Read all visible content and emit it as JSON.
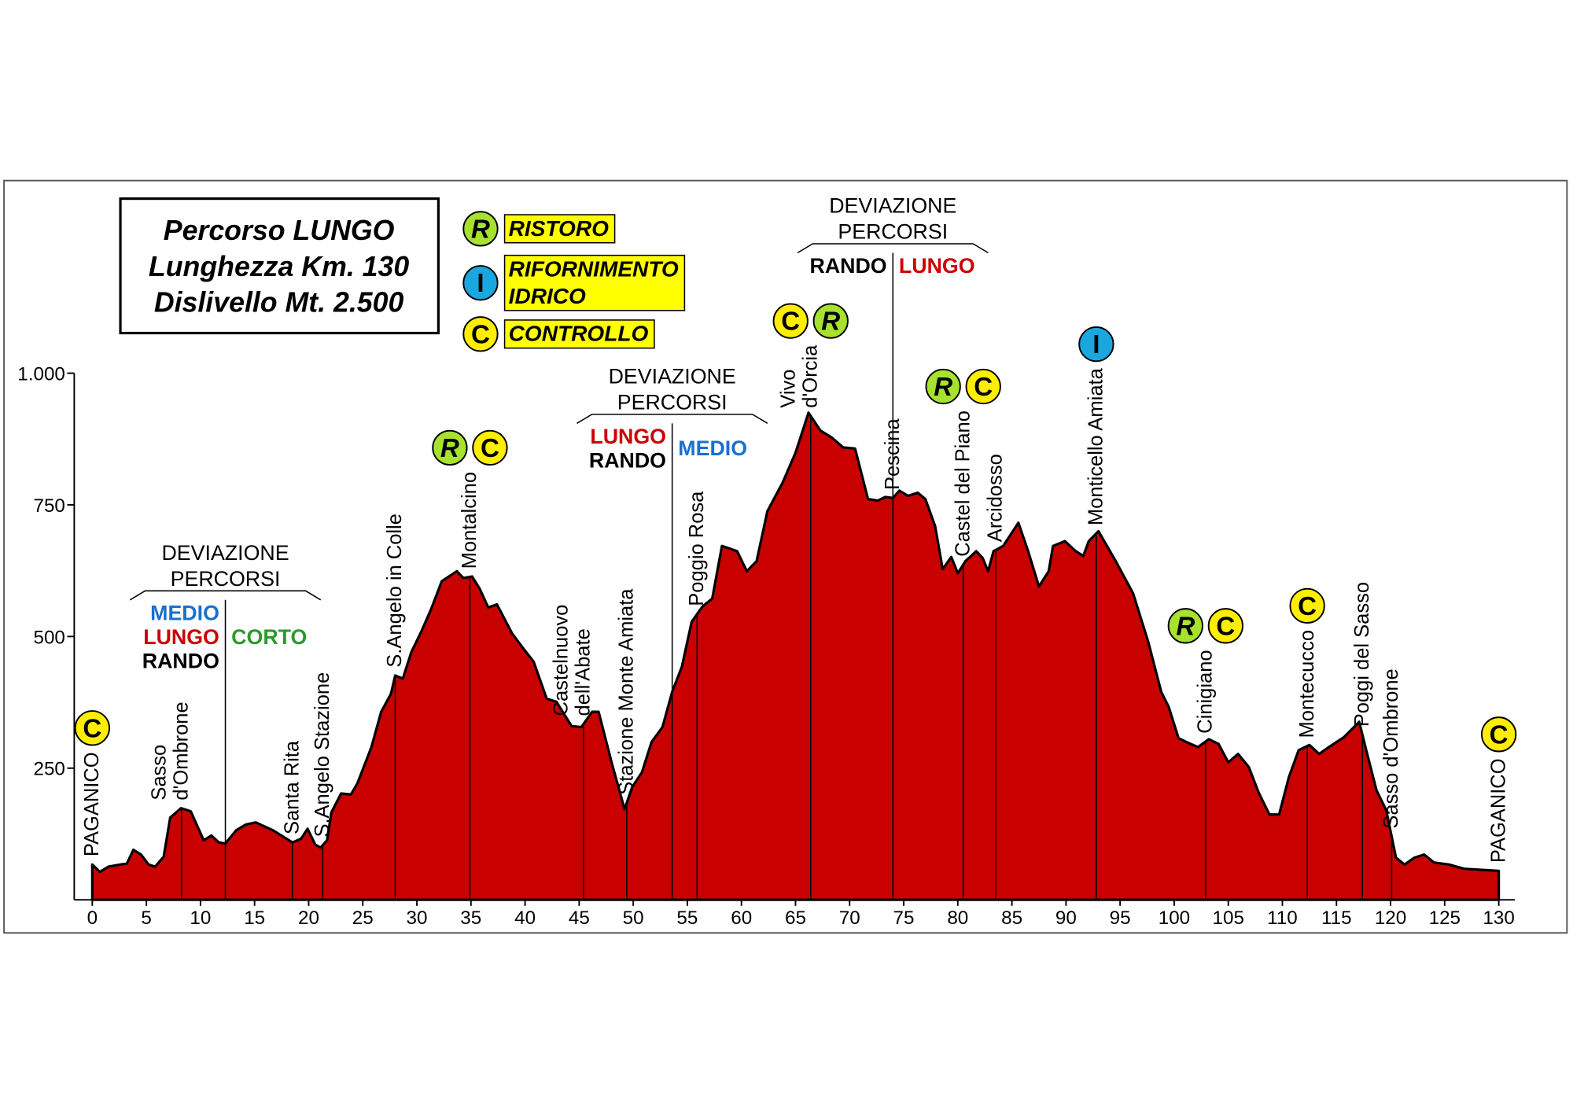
{
  "chart_data": {
    "type": "area",
    "color": "#c80000",
    "info": [
      "Percorso LUNGO",
      "Lunghezza Km. 130",
      "Dislivello Mt. 2.500"
    ],
    "icon_colors": {
      "R": "#a6e22e",
      "I": "#1aa7e0",
      "C": "#ffee00"
    },
    "legend_box_color": "#ffff00",
    "legend": [
      {
        "icon": "R",
        "label": [
          "RISTORO"
        ]
      },
      {
        "icon": "I",
        "label": [
          "RIFORNIMENTO",
          "IDRICO"
        ]
      },
      {
        "icon": "C",
        "label": [
          "CONTROLLO"
        ]
      }
    ],
    "route_colors": {
      "MEDIO": "#1a6fd0",
      "LUNGO": "#cc0000",
      "CORTO": "#2a9a2a",
      "RANDO": "#000000"
    },
    "deviations": [
      {
        "km": 12.3,
        "title": [
          "DEVIAZIONE",
          "PERCORSI"
        ],
        "left": [
          "MEDIO",
          "LUNGO",
          "RANDO"
        ],
        "right": [
          "CORTO"
        ]
      },
      {
        "km": 53.6,
        "title": [
          "DEVIAZIONE",
          "PERCORSI"
        ],
        "left": [
          "LUNGO",
          "RANDO"
        ],
        "right": [
          "MEDIO"
        ]
      },
      {
        "km": 74.0,
        "title": [
          "DEVIAZIONE",
          "PERCORSI"
        ],
        "left": [
          "RANDO"
        ],
        "right": [
          "LUNGO"
        ]
      }
    ],
    "waypoints": [
      {
        "label": [
          "PAGANICO"
        ],
        "km": 0,
        "services": [
          "C"
        ]
      },
      {
        "label": [
          "Sasso",
          "d'Ombrone"
        ],
        "km": 8.25,
        "services": []
      },
      {
        "label": [
          "Santa Rita"
        ],
        "km": 18.5,
        "services": []
      },
      {
        "label": [
          "S.Angelo Stazione"
        ],
        "km": 21.3,
        "services": []
      },
      {
        "label": [
          "S.Angelo in Colle"
        ],
        "km": 28.0,
        "services": []
      },
      {
        "label": [
          "Montalcino"
        ],
        "km": 34.9,
        "services": [
          "R",
          "C"
        ]
      },
      {
        "label": [
          "Castelnuovo",
          "dell'Abate"
        ],
        "km": 45.4,
        "services": []
      },
      {
        "label": [
          "Stazione Monte Amiata"
        ],
        "km": 49.4,
        "services": []
      },
      {
        "label": [
          "Poggio Rosa"
        ],
        "km": 55.9,
        "services": []
      },
      {
        "label": [
          "Vivo",
          "d'Orcia"
        ],
        "km": 66.4,
        "services": [
          "C",
          "R"
        ]
      },
      {
        "label": [
          "Pescina"
        ],
        "km": 74.0,
        "services": []
      },
      {
        "label": [
          "Castel del Piano"
        ],
        "km": 80.5,
        "services": [
          "R",
          "C"
        ]
      },
      {
        "label": [
          "Arcidosso"
        ],
        "km": 83.5,
        "services": []
      },
      {
        "label": [
          "Monticello Amiata"
        ],
        "km": 92.8,
        "services": [
          "I"
        ]
      },
      {
        "label": [
          "Cinigiano"
        ],
        "km": 102.9,
        "services": [
          "R",
          "C"
        ]
      },
      {
        "label": [
          "Montecucco"
        ],
        "km": 112.3,
        "services": [
          "C"
        ]
      },
      {
        "label": [
          "Poggi del Sasso"
        ],
        "km": 117.4,
        "services": []
      },
      {
        "label": [
          "Sasso d'Ombrone"
        ],
        "km": 120.1,
        "services": []
      },
      {
        "label": [
          "PAGANICO"
        ],
        "km": 130,
        "services": [
          "C"
        ]
      }
    ],
    "x": [
      0,
      0.7,
      1.5,
      2.6,
      3.2,
      3.8,
      4.5,
      5.2,
      5.8,
      6.6,
      7.2,
      8.2,
      9.1,
      10.3,
      11,
      11.7,
      12.3,
      13.3,
      14.2,
      15.1,
      16.7,
      18.5,
      19.3,
      19.9,
      20.6,
      21.1,
      21.7,
      22.1,
      23,
      23.9,
      24.5,
      25.8,
      26.7,
      27.6,
      28,
      28.7,
      29.5,
      30.4,
      31.3,
      32.3,
      33.7,
      34.3,
      35.1,
      35.8,
      36.6,
      37.4,
      38.8,
      39.7,
      40.8,
      42,
      42.9,
      44.3,
      45.2,
      46.2,
      46.8,
      48,
      49.2,
      49.9,
      50.8,
      51.7,
      52.7,
      53.6,
      54.5,
      55.4,
      56.4,
      57.3,
      58.2,
      59.6,
      60.5,
      61.4,
      62.4,
      63.8,
      65,
      66.2,
      67.3,
      68.4,
      69.4,
      70.5,
      71.7,
      72.6,
      73.3,
      74,
      74.6,
      75.4,
      76.3,
      77,
      77.9,
      78.6,
      79.4,
      80,
      80.7,
      81.7,
      82.3,
      82.8,
      83.3,
      84.2,
      85.6,
      86.5,
      87.5,
      88.4,
      88.8,
      89.9,
      90.9,
      91.6,
      92.1,
      93,
      94.6,
      96.2,
      97.6,
      98.8,
      99.5,
      100.4,
      101.3,
      102.2,
      103.2,
      104.1,
      105,
      105.9,
      106.9,
      107.8,
      108.8,
      109.7,
      110.6,
      111.5,
      112.5,
      113.4,
      114.3,
      115.7,
      117.1,
      117.8,
      118.7,
      119.6,
      120.5,
      121.3,
      122.2,
      123.1,
      124,
      125.4,
      126.8,
      130
    ],
    "values": [
      67,
      53,
      63,
      67,
      69,
      95,
      86,
      67,
      63,
      82,
      156,
      174,
      168,
      113,
      122,
      109,
      107,
      132,
      143,
      147,
      132,
      109,
      116,
      135,
      105,
      99,
      113,
      166,
      202,
      200,
      221,
      290,
      357,
      391,
      426,
      420,
      471,
      509,
      551,
      605,
      624,
      611,
      614,
      591,
      555,
      561,
      506,
      481,
      452,
      382,
      376,
      330,
      328,
      357,
      357,
      261,
      172,
      214,
      242,
      300,
      328,
      395,
      443,
      528,
      557,
      572,
      672,
      662,
      624,
      643,
      738,
      792,
      849,
      925,
      891,
      877,
      859,
      857,
      761,
      758,
      765,
      763,
      777,
      767,
      773,
      761,
      710,
      628,
      651,
      620,
      643,
      662,
      649,
      624,
      662,
      672,
      716,
      662,
      595,
      624,
      672,
      681,
      662,
      653,
      681,
      700,
      643,
      582,
      490,
      395,
      366,
      307,
      298,
      290,
      305,
      296,
      261,
      277,
      252,
      204,
      162,
      162,
      233,
      284,
      294,
      277,
      290,
      309,
      338,
      280,
      208,
      170,
      80,
      67,
      80,
      86,
      71,
      67,
      59,
      55
    ],
    "xlim": [
      0,
      130
    ],
    "ylim": [
      0,
      1000
    ],
    "xticks": [
      0,
      5,
      10,
      15,
      20,
      25,
      30,
      35,
      40,
      45,
      50,
      55,
      60,
      65,
      70,
      75,
      80,
      85,
      90,
      95,
      100,
      105,
      110,
      115,
      120,
      125,
      130
    ],
    "yticks": [
      {
        "value": 1000,
        "label": "1.000"
      },
      750,
      500,
      250
    ]
  }
}
